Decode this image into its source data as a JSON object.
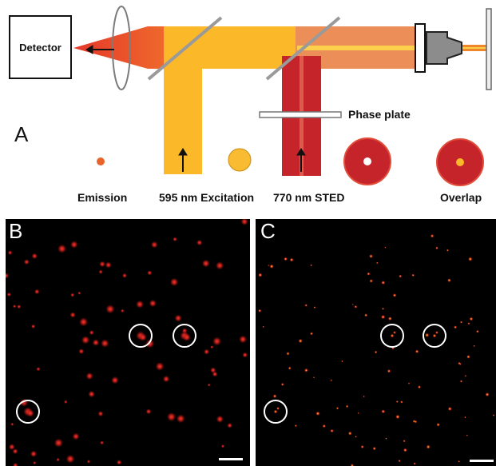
{
  "diagram": {
    "detector_label": "Detector",
    "phase_plate_label": "Phase plate",
    "panel_a_letter": "A",
    "emission_label": "Emission",
    "excitation_label": "595 nm Excitation",
    "sted_label": "770 nm  STED",
    "overlap_label": "Overlap"
  },
  "panels": {
    "b_letter": "B",
    "c_letter": "C"
  },
  "colors": {
    "emission_red": "#e53b23",
    "excitation_yellow": "#fbb829",
    "sted_red": "#c6242b",
    "mirror_gray": "#9a9a9a",
    "background_black": "#000000"
  },
  "icons": [
    "lens-icon",
    "mirror-icon",
    "objective-icon",
    "sample-slide-icon",
    "arrow-icon",
    "circle-marker-icon",
    "scale-bar"
  ]
}
